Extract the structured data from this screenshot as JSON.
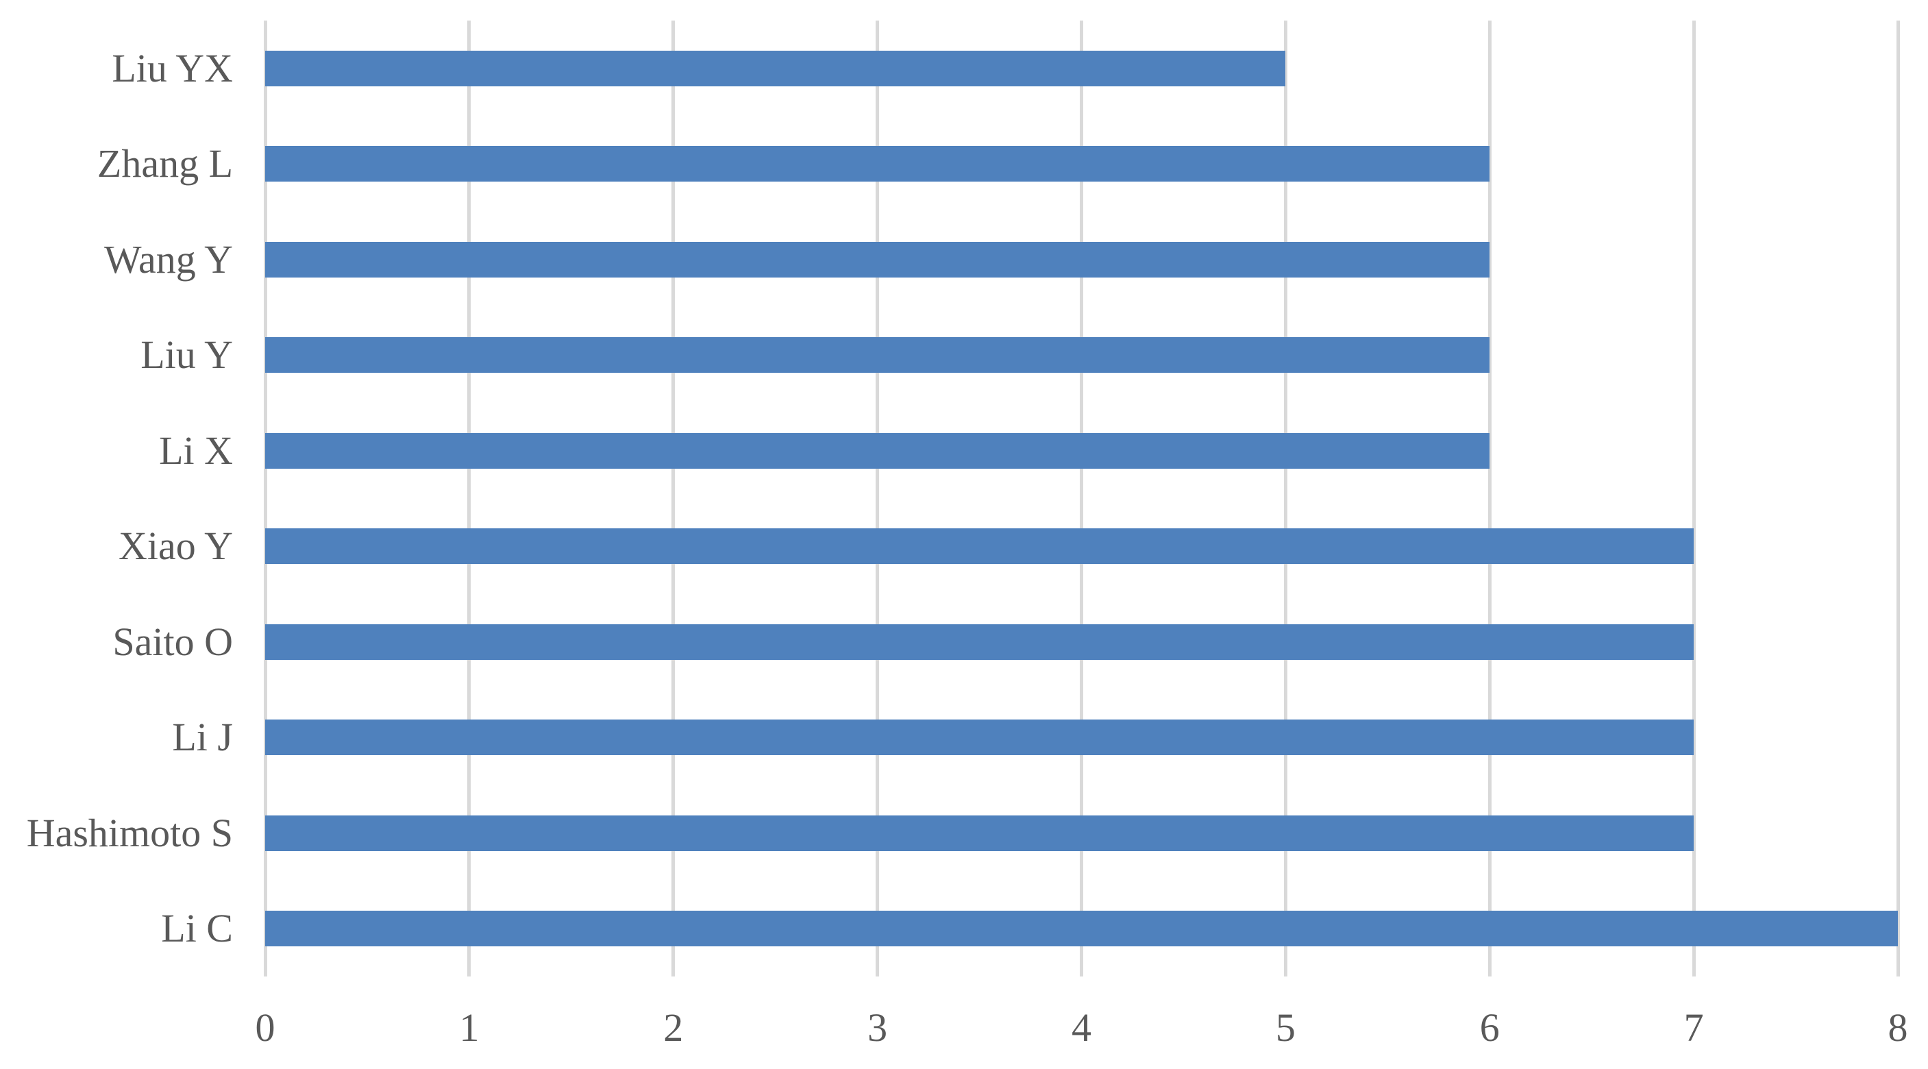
{
  "chart_data": {
    "type": "bar",
    "orientation": "horizontal",
    "title": "",
    "xlabel": "",
    "ylabel": "",
    "categories": [
      "Liu YX",
      "Zhang L",
      "Wang Y",
      "Liu Y",
      "Li X",
      "Xiao Y",
      "Saito O",
      "Li J",
      "Hashimoto S",
      "Li C"
    ],
    "values": [
      5,
      6,
      6,
      6,
      6,
      7,
      7,
      7,
      7,
      8
    ],
    "xlim": [
      0,
      8
    ],
    "x_ticks": [
      0,
      1,
      2,
      3,
      4,
      5,
      6,
      7,
      8
    ],
    "grid": "vertical",
    "legend": "none",
    "colors": {
      "bar": "#4F81BD",
      "gridline": "#D9D9D9",
      "text": "#595959",
      "background": "#FFFFFF"
    }
  }
}
